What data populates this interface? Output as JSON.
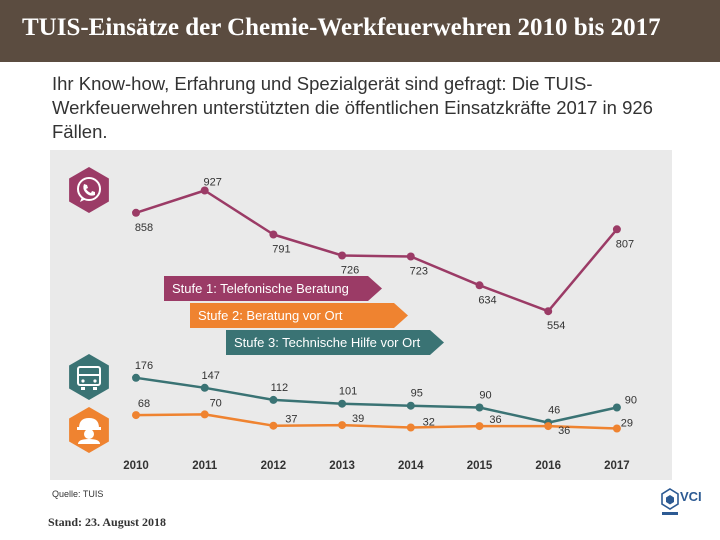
{
  "header": {
    "title": "TUIS-Einsätze der Chemie-Werkfeuerwehren 2010 bis 2017"
  },
  "subtitle": "Ihr Know-how, Erfahrung und Spezialgerät sind gefragt: Die TUIS-Werkfeuerwehren unterstützten die öffentlichen Einsatzkräfte 2017 in 926 Fällen.",
  "source": "Quelle: TUIS",
  "footer": {
    "date": "Stand: 23. August 2018",
    "logo": "VCI"
  },
  "colors": {
    "stufe1": "#9b3b66",
    "stufe2": "#ef8330",
    "stufe3": "#3a7374"
  },
  "icons": {
    "stufe1": "phone-icon",
    "stufe2": "firefighter-icon",
    "stufe3": "vehicle-icon"
  },
  "chart_data": {
    "type": "line",
    "categories": [
      "2010",
      "2011",
      "2012",
      "2013",
      "2014",
      "2015",
      "2016",
      "2017"
    ],
    "series": [
      {
        "name": "Stufe 1: Telefonische Beratung",
        "values": [
          858,
          927,
          791,
          726,
          723,
          634,
          554,
          807
        ]
      },
      {
        "name": "Stufe 2: Beratung vor Ort",
        "values": [
          68,
          70,
          37,
          39,
          32,
          36,
          36,
          29
        ]
      },
      {
        "name": "Stufe 3: Technische Hilfe vor Ort",
        "values": [
          176,
          147,
          112,
          101,
          95,
          90,
          46,
          90
        ]
      }
    ]
  }
}
